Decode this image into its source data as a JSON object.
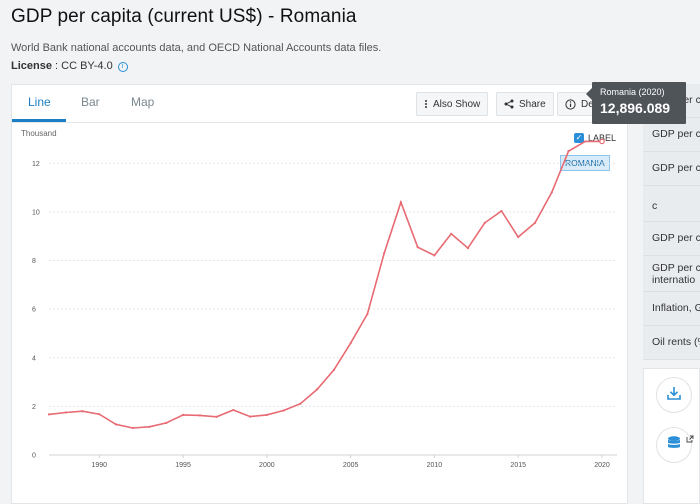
{
  "header": {
    "title": "GDP per capita (current US$) - Romania",
    "source": "World Bank national accounts data, and OECD National Accounts data files.",
    "license_label": "License",
    "license_value": " : CC BY-4.0"
  },
  "tabs": [
    {
      "label": "Line",
      "active": true
    },
    {
      "label": "Bar",
      "active": false
    },
    {
      "label": "Map",
      "active": false
    }
  ],
  "toolbar": {
    "also_show": "Also Show",
    "share": "Share",
    "details": "Details"
  },
  "chart": {
    "unit_label": "Thousand",
    "legend_label": "LABEL",
    "series_tag": "ROMANIA",
    "tooltip_title": "Romania (2020)",
    "tooltip_value": "12,896.089"
  },
  "side_panel": [
    {
      "label": "GDP per c",
      "label2": ""
    },
    {
      "label": "GDP per c",
      "label2": ""
    },
    {
      "label": "GDP per c",
      "label2": ""
    },
    {
      "label": "",
      "label2": "c"
    },
    {
      "label": "GDP per c",
      "label2": ""
    },
    {
      "label": "GDP per c",
      "label2": "internatio"
    },
    {
      "label": "Inflation, G",
      "label2": ""
    },
    {
      "label": "Oil rents (%",
      "label2": ""
    }
  ],
  "colors": {
    "accent": "#1a7fc4",
    "line": "#e86a72",
    "tooltip_bg": "#4f5459"
  },
  "icons": [
    "info-icon",
    "dots-icon",
    "share-icon",
    "info-circle-icon",
    "download-icon",
    "database-icon",
    "external-link-icon"
  ],
  "chart_data": {
    "type": "line",
    "series": [
      {
        "name": "ROMANIA",
        "x": [
          1987,
          1988,
          1989,
          1990,
          1991,
          1992,
          1993,
          1994,
          1995,
          1996,
          1997,
          1998,
          1999,
          2000,
          2001,
          2002,
          2003,
          2004,
          2005,
          2006,
          2007,
          2008,
          2009,
          2010,
          2011,
          2012,
          2013,
          2014,
          2015,
          2016,
          2017,
          2018,
          2019,
          2020
        ],
        "y": [
          1.67,
          1.75,
          1.8,
          1.68,
          1.26,
          1.11,
          1.16,
          1.32,
          1.65,
          1.63,
          1.57,
          1.85,
          1.58,
          1.65,
          1.83,
          2.11,
          2.7,
          3.5,
          4.6,
          5.8,
          8.3,
          10.4,
          8.55,
          8.21,
          9.1,
          8.51,
          9.55,
          10.04,
          8.97,
          9.55,
          10.8,
          12.5,
          12.9,
          12.9
        ]
      }
    ],
    "xlim": [
      1987,
      2020
    ],
    "ylim": [
      0,
      13
    ],
    "x_ticks": [
      1990,
      1995,
      2000,
      2005,
      2010,
      2015,
      2020
    ],
    "y_ticks": [
      0,
      2,
      4,
      6,
      8,
      10,
      12
    ],
    "ylabel": "Thousand",
    "grid": true
  }
}
